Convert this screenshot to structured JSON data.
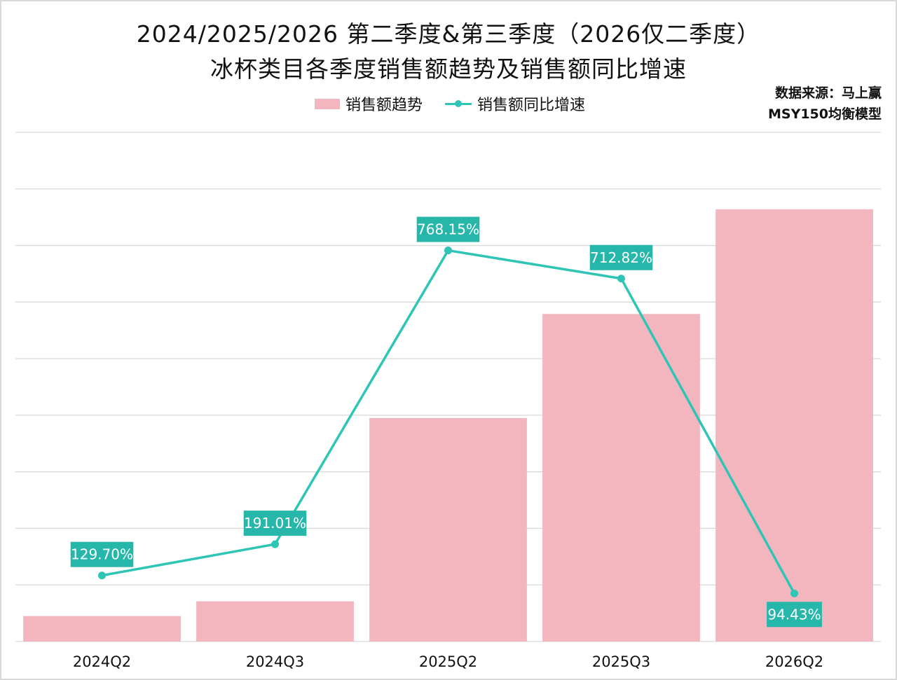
{
  "title_line1": "2024/2025/2026 第二季度&第三季度（2026仅二季度）",
  "title_line2": "冰杯类目各季度销售额趋势及销售额同比增速",
  "source_line1": "数据来源：马上赢",
  "source_line2": "MSY150均衡模型",
  "colors": {
    "bar": "#f3b6bf",
    "line": "#2ec4b6",
    "label_bg": "#26b7aa",
    "grid": "#d9d9d9"
  },
  "chart_data": {
    "type": "bar",
    "categories": [
      "2024Q2",
      "2024Q3",
      "2025Q2",
      "2025Q3",
      "2026Q2"
    ],
    "series": [
      {
        "name": "销售额趋势",
        "type": "bar",
        "axis": "left",
        "values": [
          0.45,
          0.71,
          3.95,
          5.79,
          7.64
        ]
      },
      {
        "name": "销售额同比增速",
        "type": "line",
        "axis": "right",
        "values": [
          129.7,
          191.01,
          768.15,
          712.82,
          94.43
        ],
        "labels": [
          "129.70%",
          "191.01%",
          "768.15%",
          "712.82%",
          "94.43%"
        ]
      }
    ],
    "y_left_range": [
      0,
      9
    ],
    "y_right_range": [
      0,
      1000
    ],
    "grid": true,
    "y_tick_labels_shown": false,
    "legend_position": "top-center"
  }
}
